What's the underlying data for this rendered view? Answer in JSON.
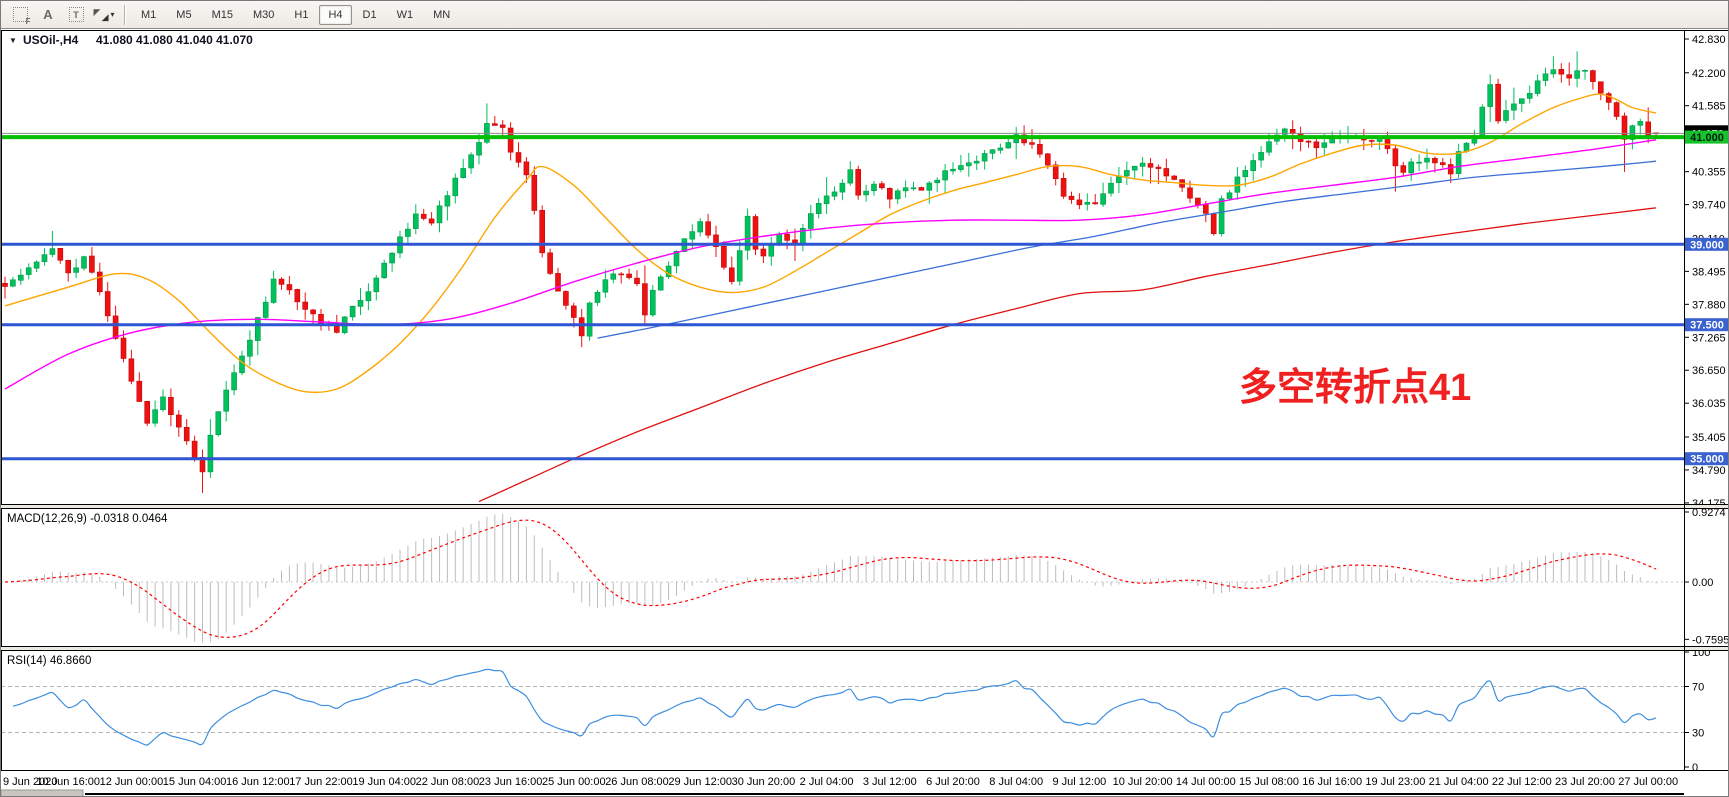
{
  "toolbar": {
    "icons": [
      {
        "name": "pointer-grid-icon",
        "label": "F"
      },
      {
        "name": "text-label-icon",
        "label": "A"
      },
      {
        "name": "text-box-icon",
        "label": "T"
      },
      {
        "name": "color-scheme-icon",
        "label": ""
      }
    ],
    "timeframes": [
      "M1",
      "M5",
      "M15",
      "M30",
      "H1",
      "H4",
      "D1",
      "W1",
      "MN"
    ],
    "active_timeframe": "H4"
  },
  "chart": {
    "header": {
      "symbol_period": "USOil-,H4",
      "ohlc": "41.080 41.080 41.040 41.070"
    }
  },
  "chart_data": {
    "type": "candlestick",
    "symbol": "USOil-",
    "timeframe": "H4",
    "current": {
      "open": 41.08,
      "high": 41.08,
      "low": 41.04,
      "close": 41.07
    },
    "bars_total": 210,
    "price_axis": {
      "visible_min": 34.175,
      "visible_max": 42.92,
      "ticks": [
        "42.830",
        "42.200",
        "41.585",
        "40.970",
        "40.355",
        "39.740",
        "39.110",
        "38.495",
        "37.880",
        "37.265",
        "36.650",
        "36.035",
        "35.405",
        "34.790",
        "34.175"
      ]
    },
    "levels": [
      {
        "label": "41.000",
        "value": 41.0,
        "line": "#00BE00",
        "box": "#17C22E",
        "text": "#00220a",
        "width": 4
      },
      {
        "label": "39.000",
        "value": 39.0,
        "line": "#2E55D4",
        "box": "#3A62D0",
        "text": "#ffffff",
        "width": 3
      },
      {
        "label": "37.500",
        "value": 37.5,
        "line": "#2E55D4",
        "box": "#3A62D0",
        "text": "#ffffff",
        "width": 3
      },
      {
        "label": "35.000",
        "value": 35.0,
        "line": "#2E55D4",
        "box": "#3A62D0",
        "text": "#ffffff",
        "width": 3
      }
    ],
    "bid_line": {
      "label": "41.070",
      "value": 41.07,
      "line": "#8a8a8a",
      "box": "#000000",
      "text": "#ffffff"
    },
    "time_labels": [
      "9 Jun 2020",
      "10 Jun 16:00",
      "12 Jun 00:00",
      "15 Jun 04:00",
      "16 Jun 12:00",
      "17 Jun 22:00",
      "19 Jun 04:00",
      "22 Jun 08:00",
      "23 Jun 16:00",
      "25 Jun 00:00",
      "26 Jun 08:00",
      "29 Jun 12:00",
      "30 Jun 20:00",
      "2 Jul 04:00",
      "3 Jul 12:00",
      "6 Jul 20:00",
      "8 Jul 04:00",
      "9 Jul 12:00",
      "10 Jul 20:00",
      "14 Jul 00:00",
      "15 Jul 08:00",
      "16 Jul 16:00",
      "19 Jul 23:00",
      "21 Jul 04:00",
      "22 Jul 12:00",
      "23 Jul 20:00",
      "27 Jul 00:00"
    ],
    "bars_per_label": 8,
    "candle_colors": {
      "up": "#00C15C",
      "up_stroke": "#00994a",
      "down": "#EE1111",
      "down_stroke": "#c40808"
    },
    "price_waypoints": [
      [
        0,
        38.2
      ],
      [
        3,
        38.6
      ],
      [
        6,
        38.95
      ],
      [
        8,
        38.45
      ],
      [
        10,
        38.75
      ],
      [
        12,
        38.15
      ],
      [
        14,
        37.2
      ],
      [
        16,
        36.45
      ],
      [
        18,
        35.7
      ],
      [
        20,
        36.15
      ],
      [
        22,
        35.6
      ],
      [
        24,
        35.05
      ],
      [
        25,
        34.75
      ],
      [
        26,
        35.45
      ],
      [
        28,
        36.3
      ],
      [
        30,
        36.9
      ],
      [
        32,
        37.6
      ],
      [
        34,
        38.3
      ],
      [
        36,
        38.1
      ],
      [
        38,
        37.75
      ],
      [
        40,
        37.55
      ],
      [
        42,
        37.4
      ],
      [
        44,
        37.8
      ],
      [
        46,
        38.15
      ],
      [
        48,
        38.6
      ],
      [
        50,
        39.1
      ],
      [
        52,
        39.55
      ],
      [
        54,
        39.4
      ],
      [
        56,
        39.95
      ],
      [
        58,
        40.4
      ],
      [
        60,
        40.9
      ],
      [
        61,
        41.3
      ],
      [
        63,
        41.15
      ],
      [
        64,
        40.7
      ],
      [
        66,
        40.3
      ],
      [
        67,
        39.6
      ],
      [
        68,
        38.8
      ],
      [
        70,
        38.1
      ],
      [
        72,
        37.6
      ],
      [
        73,
        37.3
      ],
      [
        74,
        37.9
      ],
      [
        76,
        38.3
      ],
      [
        78,
        38.5
      ],
      [
        80,
        38.25
      ],
      [
        81,
        37.7
      ],
      [
        82,
        38.1
      ],
      [
        84,
        38.6
      ],
      [
        86,
        39.1
      ],
      [
        88,
        39.4
      ],
      [
        90,
        38.9
      ],
      [
        92,
        38.3
      ],
      [
        94,
        39.5
      ],
      [
        95,
        38.95
      ],
      [
        96,
        38.75
      ],
      [
        98,
        39.2
      ],
      [
        100,
        39.0
      ],
      [
        102,
        39.6
      ],
      [
        104,
        39.95
      ],
      [
        106,
        40.1
      ],
      [
        107,
        40.35
      ],
      [
        108,
        39.95
      ],
      [
        110,
        40.1
      ],
      [
        112,
        39.9
      ],
      [
        114,
        40.1
      ],
      [
        116,
        40.05
      ],
      [
        118,
        40.25
      ],
      [
        120,
        40.4
      ],
      [
        122,
        40.5
      ],
      [
        124,
        40.7
      ],
      [
        126,
        40.85
      ],
      [
        128,
        41.0
      ],
      [
        130,
        40.9
      ],
      [
        132,
        40.45
      ],
      [
        134,
        39.95
      ],
      [
        136,
        39.7
      ],
      [
        138,
        39.75
      ],
      [
        140,
        40.1
      ],
      [
        142,
        40.35
      ],
      [
        144,
        40.5
      ],
      [
        146,
        40.4
      ],
      [
        148,
        40.15
      ],
      [
        150,
        39.9
      ],
      [
        152,
        39.55
      ],
      [
        153,
        39.2
      ],
      [
        154,
        39.8
      ],
      [
        156,
        40.2
      ],
      [
        158,
        40.55
      ],
      [
        160,
        40.9
      ],
      [
        162,
        41.15
      ],
      [
        164,
        40.95
      ],
      [
        166,
        40.8
      ],
      [
        168,
        40.95
      ],
      [
        170,
        41.05
      ],
      [
        172,
        40.9
      ],
      [
        174,
        41.0
      ],
      [
        176,
        40.45
      ],
      [
        177,
        40.3
      ],
      [
        178,
        40.55
      ],
      [
        180,
        40.6
      ],
      [
        182,
        40.45
      ],
      [
        183,
        40.35
      ],
      [
        184,
        40.7
      ],
      [
        186,
        41.05
      ],
      [
        188,
        41.95
      ],
      [
        189,
        41.25
      ],
      [
        190,
        41.45
      ],
      [
        192,
        41.7
      ],
      [
        194,
        42.0
      ],
      [
        196,
        42.25
      ],
      [
        198,
        42.1
      ],
      [
        200,
        42.3
      ],
      [
        202,
        41.85
      ],
      [
        204,
        41.35
      ],
      [
        205,
        40.95
      ],
      [
        206,
        41.2
      ],
      [
        207,
        41.35
      ],
      [
        208,
        41.05
      ],
      [
        209,
        41.07
      ]
    ],
    "wick_overrides": {
      "6": {
        "high": 39.25
      },
      "25": {
        "low": 34.36
      },
      "61": {
        "high": 41.63
      },
      "73": {
        "low": 37.08
      },
      "107": {
        "high": 40.55
      },
      "128": {
        "high": 41.19
      },
      "176": {
        "low": 39.98
      },
      "196": {
        "high": 42.51
      },
      "205": {
        "low": 40.35
      }
    },
    "moving_averages": [
      {
        "name": "ma-fast-orange",
        "color": "#FFA500",
        "width": 1.4,
        "points": [
          [
            0,
            37.85
          ],
          [
            8,
            38.2
          ],
          [
            14,
            38.45
          ],
          [
            18,
            38.35
          ],
          [
            22,
            37.95
          ],
          [
            26,
            37.35
          ],
          [
            30,
            36.8
          ],
          [
            34,
            36.45
          ],
          [
            38,
            36.25
          ],
          [
            42,
            36.3
          ],
          [
            46,
            36.65
          ],
          [
            50,
            37.15
          ],
          [
            54,
            37.8
          ],
          [
            58,
            38.6
          ],
          [
            62,
            39.5
          ],
          [
            66,
            40.2
          ],
          [
            68,
            40.45
          ],
          [
            72,
            40.1
          ],
          [
            76,
            39.5
          ],
          [
            80,
            38.9
          ],
          [
            84,
            38.45
          ],
          [
            88,
            38.2
          ],
          [
            92,
            38.1
          ],
          [
            96,
            38.2
          ],
          [
            100,
            38.5
          ],
          [
            104,
            38.85
          ],
          [
            108,
            39.2
          ],
          [
            112,
            39.55
          ],
          [
            116,
            39.8
          ],
          [
            120,
            40.0
          ],
          [
            124,
            40.15
          ],
          [
            128,
            40.3
          ],
          [
            132,
            40.45
          ],
          [
            136,
            40.45
          ],
          [
            140,
            40.3
          ],
          [
            144,
            40.2
          ],
          [
            148,
            40.15
          ],
          [
            152,
            40.1
          ],
          [
            156,
            40.1
          ],
          [
            160,
            40.25
          ],
          [
            164,
            40.5
          ],
          [
            168,
            40.7
          ],
          [
            172,
            40.85
          ],
          [
            176,
            40.85
          ],
          [
            180,
            40.7
          ],
          [
            184,
            40.7
          ],
          [
            188,
            40.9
          ],
          [
            192,
            41.25
          ],
          [
            196,
            41.55
          ],
          [
            200,
            41.75
          ],
          [
            202,
            41.8
          ],
          [
            204,
            41.7
          ],
          [
            206,
            41.55
          ],
          [
            209,
            41.45
          ]
        ]
      },
      {
        "name": "ma-medium-magenta",
        "color": "#FF00FF",
        "width": 1.4,
        "points": [
          [
            0,
            36.3
          ],
          [
            8,
            36.95
          ],
          [
            16,
            37.35
          ],
          [
            24,
            37.55
          ],
          [
            32,
            37.6
          ],
          [
            40,
            37.55
          ],
          [
            48,
            37.5
          ],
          [
            56,
            37.6
          ],
          [
            64,
            37.9
          ],
          [
            72,
            38.3
          ],
          [
            80,
            38.65
          ],
          [
            88,
            38.95
          ],
          [
            96,
            39.15
          ],
          [
            104,
            39.3
          ],
          [
            112,
            39.4
          ],
          [
            120,
            39.45
          ],
          [
            128,
            39.45
          ],
          [
            136,
            39.45
          ],
          [
            144,
            39.55
          ],
          [
            152,
            39.75
          ],
          [
            160,
            39.95
          ],
          [
            168,
            40.1
          ],
          [
            176,
            40.25
          ],
          [
            184,
            40.45
          ],
          [
            192,
            40.6
          ],
          [
            200,
            40.75
          ],
          [
            209,
            40.95
          ]
        ]
      },
      {
        "name": "ma-slow-blue",
        "color": "#3A6FD8",
        "width": 1.3,
        "points": [
          [
            75,
            37.25
          ],
          [
            82,
            37.45
          ],
          [
            90,
            37.7
          ],
          [
            98,
            37.95
          ],
          [
            106,
            38.2
          ],
          [
            114,
            38.45
          ],
          [
            122,
            38.7
          ],
          [
            130,
            38.95
          ],
          [
            138,
            39.15
          ],
          [
            146,
            39.4
          ],
          [
            154,
            39.6
          ],
          [
            162,
            39.8
          ],
          [
            170,
            39.95
          ],
          [
            178,
            40.1
          ],
          [
            186,
            40.25
          ],
          [
            194,
            40.35
          ],
          [
            202,
            40.45
          ],
          [
            209,
            40.55
          ]
        ]
      },
      {
        "name": "ma-slowest-red",
        "color": "#E01010",
        "width": 1.3,
        "points": [
          [
            60,
            34.2
          ],
          [
            66,
            34.6
          ],
          [
            72,
            35.0
          ],
          [
            80,
            35.5
          ],
          [
            88,
            35.95
          ],
          [
            96,
            36.4
          ],
          [
            104,
            36.8
          ],
          [
            112,
            37.15
          ],
          [
            120,
            37.5
          ],
          [
            128,
            37.8
          ],
          [
            136,
            38.08
          ],
          [
            144,
            38.15
          ],
          [
            152,
            38.4
          ],
          [
            160,
            38.62
          ],
          [
            168,
            38.85
          ],
          [
            176,
            39.05
          ],
          [
            184,
            39.22
          ],
          [
            192,
            39.38
          ],
          [
            200,
            39.52
          ],
          [
            209,
            39.68
          ]
        ]
      }
    ],
    "indicators": {
      "macd": {
        "header": "MACD(12,26,9) -0.0318 0.0464",
        "fast": 12,
        "slow": 26,
        "signal": 9,
        "value": -0.0318,
        "signal_value": 0.0464,
        "axis_ticks": [
          "0.9274",
          "0.00",
          "-0.7595"
        ],
        "scale_max": 0.9274,
        "scale_min": -0.7595,
        "histogram_color": "#BDBDBD",
        "signal_color": "#FF0000"
      },
      "rsi": {
        "header": "RSI(14) 46.8660",
        "period": 14,
        "value": 46.866,
        "axis_ticks": [
          "100",
          "70",
          "30",
          "0"
        ],
        "levels": [
          70,
          30
        ],
        "line_color": "#3E8EDE",
        "level_color": "#b4b4b4"
      }
    },
    "annotation": {
      "text": "多空转折点41",
      "color": "#F02020"
    }
  }
}
